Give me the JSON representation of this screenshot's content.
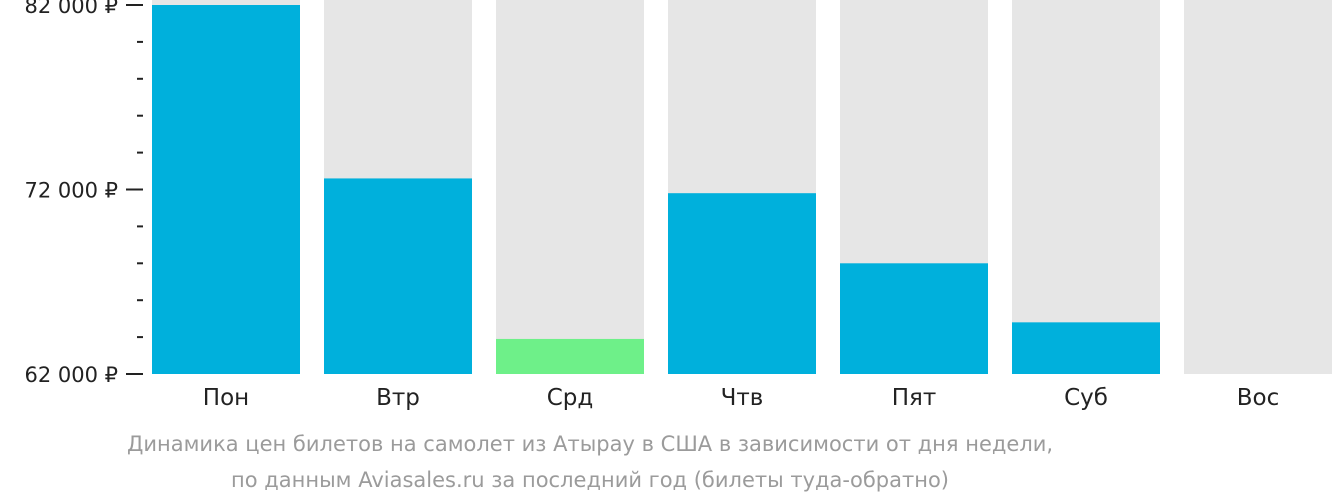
{
  "chart_data": {
    "type": "bar",
    "categories": [
      "Пон",
      "Втр",
      "Срд",
      "Чтв",
      "Пят",
      "Суб",
      "Вос"
    ],
    "values": [
      82000,
      72600,
      63900,
      71800,
      68000,
      64800,
      null
    ],
    "ylim": [
      62000,
      82000
    ],
    "yticks_major": [
      {
        "value": 62000,
        "label": "62 000 ₽"
      },
      {
        "value": 72000,
        "label": "72 000 ₽"
      },
      {
        "value": 82000,
        "label": "82 000 ₽"
      }
    ],
    "yticks_minor": [
      64000,
      66000,
      68000,
      70000,
      74000,
      76000,
      78000,
      80000
    ],
    "highlight_category": "Срд",
    "colors": {
      "bar": "#00b0dc",
      "highlight": "#6ef089",
      "background_column": "#e6e6e6",
      "axis": "#222222"
    },
    "caption": [
      "Динамика цен билетов на самолет из Атырау в США в зависимости от дня недели,",
      "по данным Aviasales.ru за последний год (билеты туда-обратно)"
    ]
  }
}
